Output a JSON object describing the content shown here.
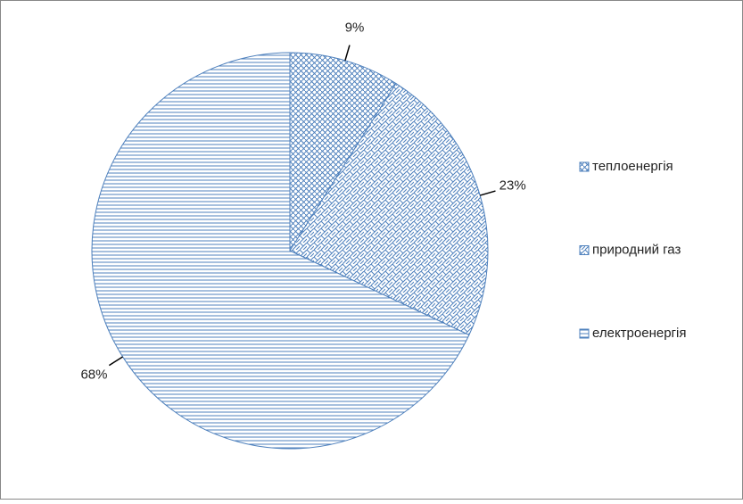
{
  "chart_data": {
    "type": "pie",
    "categories": [
      "теплоенергія",
      "природний газ",
      "електроенергія"
    ],
    "values": [
      9,
      23,
      68
    ],
    "value_labels": [
      "9%",
      "23%",
      "68%"
    ],
    "color": "#4f81bd"
  }
}
